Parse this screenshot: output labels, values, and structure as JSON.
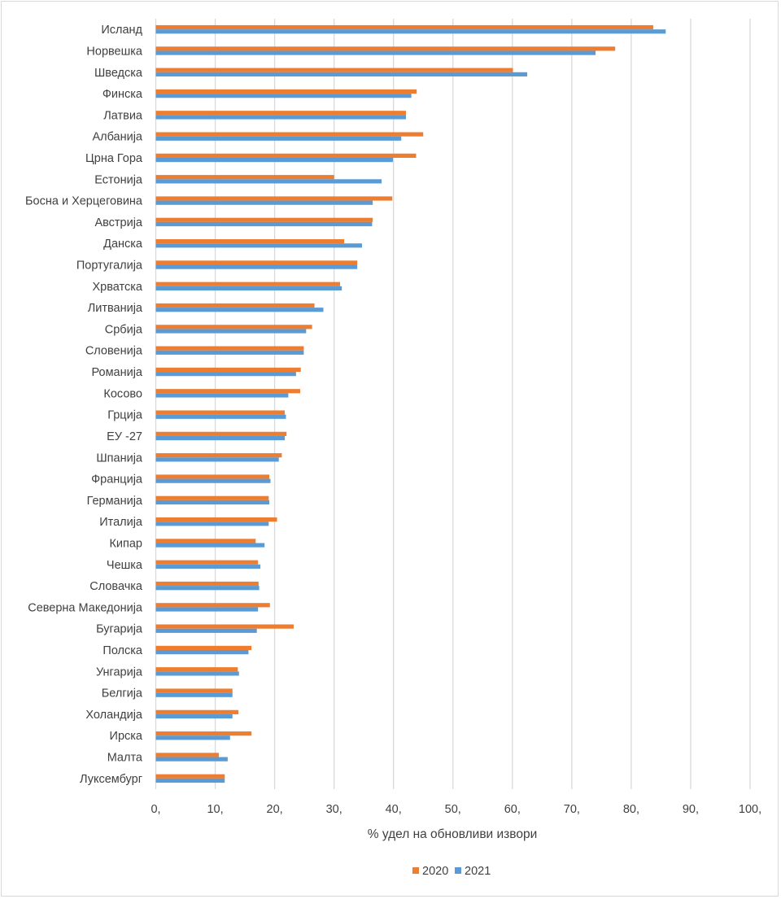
{
  "chart_data": {
    "type": "bar",
    "orientation": "horizontal",
    "title": "",
    "xlabel": "% удел на обновливи извори",
    "ylabel": "",
    "xlim": [
      0,
      100
    ],
    "x_ticks": [
      0,
      10,
      20,
      30,
      40,
      50,
      60,
      70,
      80,
      90,
      100
    ],
    "x_tick_labels": [
      "0,",
      "10,",
      "20,",
      "30,",
      "40,",
      "50,",
      "60,",
      "70,",
      "80,",
      "90,",
      "100,"
    ],
    "grid": "vertical",
    "legend_position": "bottom",
    "categories": [
      "Исланд",
      "Норвешка",
      "Шведска",
      "Финска",
      "Латвиа",
      "Албанија",
      "Црна Гора",
      "Естонија",
      "Босна и Херцеговина",
      "Австрија",
      "Данска",
      "Португалија",
      "Хрватска",
      "Литванија",
      "Србија",
      "Словенија",
      "Романија",
      "Косово",
      "Грција",
      "ЕУ -27",
      "Шпанија",
      "Франција",
      "Германија",
      "Италија",
      "Кипар",
      "Чешка",
      "Словачка",
      "Северна Македонија",
      "Бугарија",
      "Полска",
      "Унгарија",
      "Белгија",
      "Холандија",
      "Ирска",
      "Малта",
      "Луксембург"
    ],
    "series": [
      {
        "name": "2020",
        "color": "#ed7d31",
        "values": [
          83.7,
          77.3,
          60.1,
          43.9,
          42.1,
          45.0,
          43.8,
          30.0,
          39.8,
          36.5,
          31.7,
          33.9,
          31.0,
          26.7,
          26.3,
          24.9,
          24.4,
          24.3,
          21.7,
          22.0,
          21.2,
          19.1,
          19.0,
          20.4,
          16.8,
          17.2,
          17.3,
          19.2,
          23.2,
          16.1,
          13.8,
          12.9,
          13.9,
          16.1,
          10.6,
          11.6
        ]
      },
      {
        "name": "2021",
        "color": "#5b9bd5",
        "values": [
          85.8,
          74.0,
          62.5,
          43.0,
          42.1,
          41.3,
          39.9,
          38.0,
          36.5,
          36.4,
          34.7,
          33.9,
          31.3,
          28.2,
          25.3,
          24.9,
          23.6,
          22.3,
          21.9,
          21.7,
          20.7,
          19.3,
          19.1,
          19.0,
          18.3,
          17.6,
          17.4,
          17.2,
          17.0,
          15.6,
          14.0,
          12.9,
          12.9,
          12.5,
          12.1,
          11.6
        ]
      }
    ]
  }
}
